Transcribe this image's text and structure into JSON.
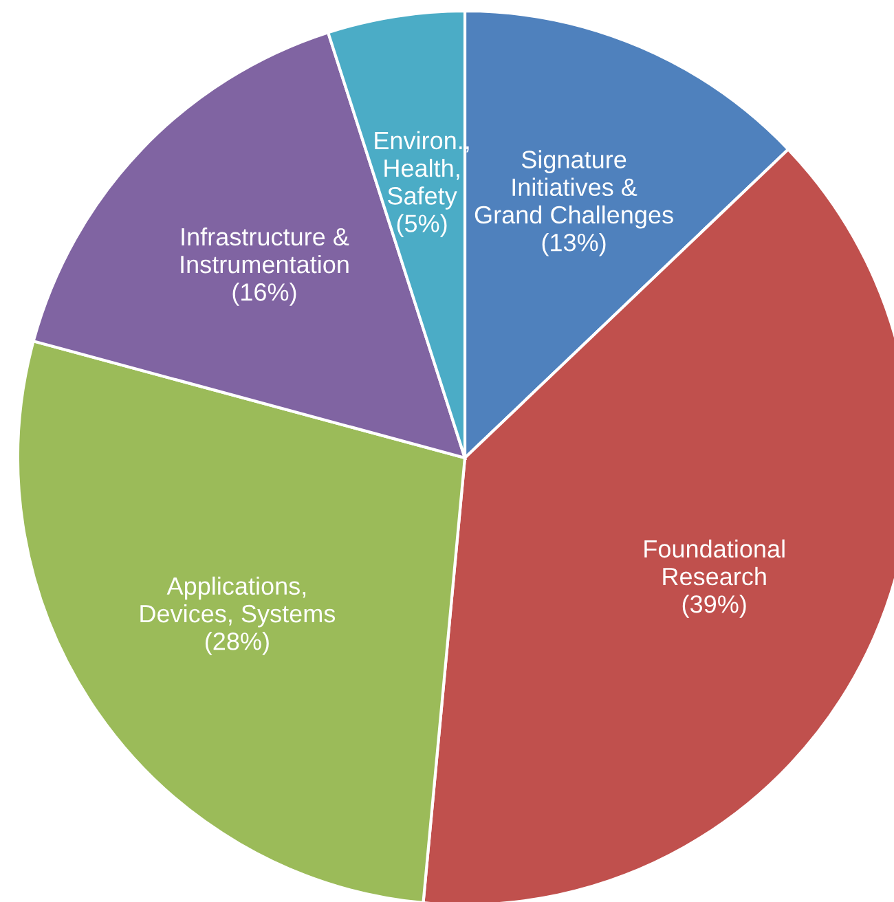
{
  "chart_data": {
    "type": "pie",
    "categories": [
      "Signature\nInitiatives &\nGrand Challenges",
      "Foundational\nResearch",
      "Applications,\nDevices, Systems",
      "Infrastructure &\nInstrumentation",
      "Environ.,\nHealth,\nSafety"
    ],
    "values": [
      13,
      39,
      28,
      16,
      5
    ],
    "value_labels": [
      "(13%)",
      "(39%)",
      "(28%)",
      "(16%)",
      "(5%)"
    ],
    "colors": [
      "#4f81bd",
      "#c0504d",
      "#9bbb59",
      "#8064a2",
      "#4bacc6"
    ]
  }
}
